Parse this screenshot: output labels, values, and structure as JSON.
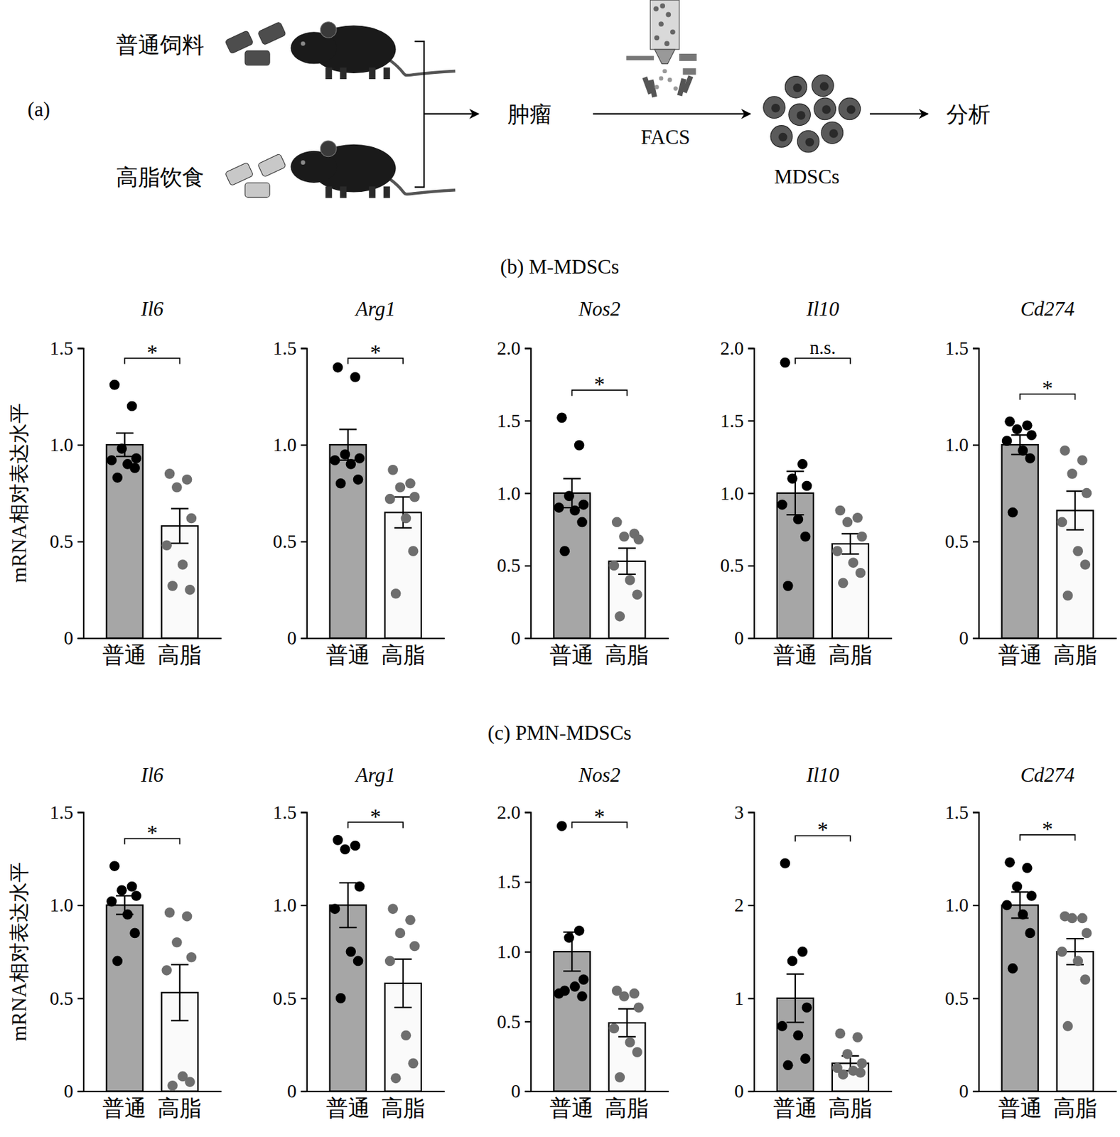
{
  "diagram": {
    "panel_label": "(a)",
    "groups": [
      "普通饲料",
      "高脂饮食"
    ],
    "steps": [
      "肿瘤",
      "MDSCs",
      "分析"
    ],
    "method": "FACS"
  },
  "sections": [
    {
      "title": "(b) M-MDSCs"
    },
    {
      "title": "(c) PMN-MDSCs"
    }
  ],
  "chart_data": [
    {
      "type": "bar",
      "title": "Il6",
      "ylabel": "mRNA相对表达水平",
      "categories": [
        "普通",
        "高脂"
      ],
      "values": [
        1,
        0.58
      ],
      "errors": [
        0.06,
        0.09
      ],
      "points": [
        [
          1.31,
          1.2,
          0.98,
          0.93,
          0.92,
          0.9,
          0.88,
          0.83
        ],
        [
          0.85,
          0.82,
          0.78,
          0.62,
          0.48,
          0.38,
          0.25,
          0.27
        ]
      ],
      "colors": [
        "#a6a6a6",
        "#fafafa"
      ],
      "ylim": [
        0,
        1.5
      ],
      "yticks": [
        0,
        0.5,
        {
          "value": 1,
          "label": "1.0"
        },
        1.5
      ],
      "annotation": "*"
    },
    {
      "type": "bar",
      "title": "Arg1",
      "categories": [
        "普通",
        "高脂"
      ],
      "values": [
        1,
        0.65
      ],
      "errors": [
        0.08,
        0.08
      ],
      "points": [
        [
          1.4,
          1.35,
          0.95,
          0.93,
          0.92,
          0.9,
          0.82,
          0.8
        ],
        [
          0.87,
          0.8,
          0.78,
          0.73,
          0.72,
          0.62,
          0.45,
          0.23
        ]
      ],
      "colors": [
        "#a6a6a6",
        "#fafafa"
      ],
      "ylim": [
        0,
        1.5
      ],
      "yticks": [
        0,
        0.5,
        {
          "value": 1,
          "label": "1.0"
        },
        1.5
      ],
      "annotation": "*"
    },
    {
      "type": "bar",
      "title": "Nos2",
      "categories": [
        "普通",
        "高脂"
      ],
      "values": [
        1,
        0.53
      ],
      "errors": [
        0.1,
        0.09
      ],
      "points": [
        [
          1.52,
          1.33,
          0.98,
          0.92,
          0.9,
          0.88,
          0.8,
          0.6
        ],
        [
          0.8,
          0.72,
          0.7,
          0.68,
          0.5,
          0.4,
          0.3,
          0.15
        ]
      ],
      "colors": [
        "#a6a6a6",
        "#fafafa"
      ],
      "ylim": [
        0,
        2
      ],
      "yticks": [
        0,
        0.5,
        {
          "value": 1,
          "label": "1.0"
        },
        1.5,
        {
          "value": 2,
          "label": "2.0"
        }
      ],
      "annotation": "*"
    },
    {
      "type": "bar",
      "title": "Il10",
      "categories": [
        "普通",
        "高脂"
      ],
      "values": [
        1,
        0.65
      ],
      "errors": [
        0.15,
        0.07
      ],
      "points": [
        [
          1.9,
          1.2,
          1.1,
          1.05,
          0.92,
          0.82,
          0.7,
          0.36
        ],
        [
          0.88,
          0.83,
          0.8,
          0.7,
          0.6,
          0.52,
          0.45,
          0.38
        ]
      ],
      "colors": [
        "#a6a6a6",
        "#fafafa"
      ],
      "ylim": [
        0,
        2
      ],
      "yticks": [
        0,
        0.5,
        {
          "value": 1,
          "label": "1.0"
        },
        1.5,
        {
          "value": 2,
          "label": "2.0"
        }
      ],
      "annotation": "n.s."
    },
    {
      "type": "bar",
      "title": "Cd274",
      "categories": [
        "普通",
        "高脂"
      ],
      "values": [
        1,
        0.66
      ],
      "errors": [
        0.05,
        0.1
      ],
      "points": [
        [
          1.12,
          1.1,
          1.08,
          1.05,
          1.02,
          0.97,
          0.93,
          0.65
        ],
        [
          0.97,
          0.92,
          0.85,
          0.75,
          0.6,
          0.45,
          0.38,
          0.22
        ]
      ],
      "colors": [
        "#a6a6a6",
        "#fafafa"
      ],
      "ylim": [
        0,
        1.5
      ],
      "yticks": [
        0,
        0.5,
        {
          "value": 1,
          "label": "1.0"
        },
        1.5
      ],
      "annotation": "*"
    },
    {
      "type": "bar",
      "title": "Il6",
      "ylabel": "mRNA相对表达水平",
      "categories": [
        "普通",
        "高脂"
      ],
      "values": [
        1,
        0.53
      ],
      "errors": [
        0.05,
        0.15
      ],
      "points": [
        [
          1.21,
          1.1,
          1.08,
          1.05,
          1.02,
          0.95,
          0.85,
          0.7
        ],
        [
          0.96,
          0.94,
          0.8,
          0.72,
          0.65,
          0.08,
          0.05,
          0.03
        ]
      ],
      "colors": [
        "#a6a6a6",
        "#fafafa"
      ],
      "ylim": [
        0,
        1.5
      ],
      "yticks": [
        0,
        0.5,
        {
          "value": 1,
          "label": "1.0"
        },
        1.5
      ],
      "annotation": "*"
    },
    {
      "type": "bar",
      "title": "Arg1",
      "categories": [
        "普通",
        "高脂"
      ],
      "values": [
        1,
        0.58
      ],
      "errors": [
        0.12,
        0.13
      ],
      "points": [
        [
          1.35,
          1.32,
          1.3,
          1.1,
          0.98,
          0.75,
          0.7,
          0.5
        ],
        [
          0.98,
          0.92,
          0.85,
          0.78,
          0.7,
          0.3,
          0.15,
          0.07
        ]
      ],
      "colors": [
        "#a6a6a6",
        "#fafafa"
      ],
      "ylim": [
        0,
        1.5
      ],
      "yticks": [
        0,
        0.5,
        {
          "value": 1,
          "label": "1.0"
        },
        1.5
      ],
      "annotation": "*"
    },
    {
      "type": "bar",
      "title": "Nos2",
      "categories": [
        "普通",
        "高脂"
      ],
      "values": [
        1,
        0.49
      ],
      "errors": [
        0.14,
        0.1
      ],
      "points": [
        [
          1.9,
          1.15,
          1.1,
          0.8,
          0.7,
          0.75,
          0.68,
          0.72
        ],
        [
          0.72,
          0.7,
          0.68,
          0.6,
          0.45,
          0.35,
          0.28,
          0.1
        ]
      ],
      "colors": [
        "#a6a6a6",
        "#fafafa"
      ],
      "ylim": [
        0,
        2
      ],
      "yticks": [
        0,
        0.5,
        {
          "value": 1,
          "label": "1.0"
        },
        1.5,
        {
          "value": 2,
          "label": "2.0"
        }
      ],
      "annotation": "*"
    },
    {
      "type": "bar",
      "title": "Il10",
      "categories": [
        "普通",
        "高脂"
      ],
      "values": [
        1,
        0.3
      ],
      "errors": [
        0.26,
        0.08
      ],
      "points": [
        [
          2.45,
          1.5,
          1.4,
          0.9,
          0.7,
          0.6,
          0.35,
          0.28
        ],
        [
          0.62,
          0.58,
          0.4,
          0.3,
          0.25,
          0.22,
          0.2,
          0.18
        ]
      ],
      "colors": [
        "#a6a6a6",
        "#fafafa"
      ],
      "ylim": [
        0,
        3
      ],
      "yticks": [
        0,
        1,
        2,
        3
      ],
      "annotation": "*"
    },
    {
      "type": "bar",
      "title": "Cd274",
      "categories": [
        "普通",
        "高脂"
      ],
      "values": [
        1,
        0.75
      ],
      "errors": [
        0.07,
        0.07
      ],
      "points": [
        [
          1.23,
          1.2,
          1.1,
          1.05,
          1,
          0.95,
          0.85,
          0.66
        ],
        [
          0.94,
          0.93,
          0.93,
          0.85,
          0.75,
          0.7,
          0.6,
          0.35
        ]
      ],
      "colors": [
        "#a6a6a6",
        "#fafafa"
      ],
      "ylim": [
        0,
        1.5
      ],
      "yticks": [
        0,
        0.5,
        {
          "value": 1,
          "label": "1.0"
        },
        1.5
      ],
      "annotation": "*"
    }
  ]
}
